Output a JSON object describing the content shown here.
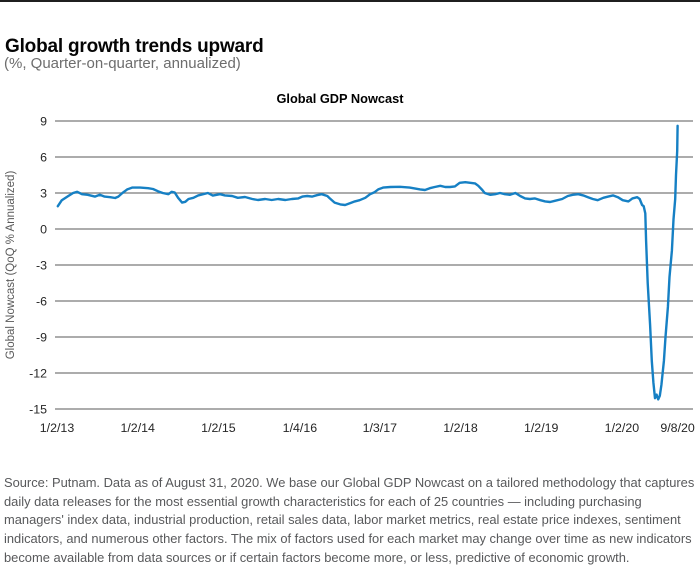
{
  "page": {
    "title": "Global growth trends upward",
    "subtitle": "(%, Quarter-on-quarter, annualized)",
    "source_note": "Source: Putnam. Data as of August 31, 2020. We base our Global GDP Nowcast on a tailored methodology that captures daily data releases for the most essential growth characteristics for each of 25 countries — including purchasing managers' index data, industrial production, retail sales data, labor market metrics, real estate price indexes, sentiment indicators, and numerous other factors. The mix of factors used for each market may change over time as new indicators become available from data sources or if certain factors become more, or less, predictive of economic growth."
  },
  "chart_data": {
    "type": "line",
    "title": "Global GDP Nowcast",
    "xlabel": "",
    "ylabel": "Global Nowcast (QoQ % Annualized)",
    "ylim": [
      -15,
      9
    ],
    "yticks": [
      9,
      6,
      3,
      0,
      -3,
      -6,
      -9,
      -12,
      -15
    ],
    "xlim_years_since_2013": [
      0,
      7.88
    ],
    "grid": "horizontal",
    "legend": "none",
    "line_color": "#1680c4",
    "gridline_color": "#7a7a7a",
    "xticks": [
      {
        "t": 0.0,
        "label": "1/2/13"
      },
      {
        "t": 1.0,
        "label": "1/2/14"
      },
      {
        "t": 2.0,
        "label": "1/2/15"
      },
      {
        "t": 3.01,
        "label": "1/4/16"
      },
      {
        "t": 4.0,
        "label": "1/3/17"
      },
      {
        "t": 5.0,
        "label": "1/2/18"
      },
      {
        "t": 6.0,
        "label": "1/2/19"
      },
      {
        "t": 7.0,
        "label": "1/2/20"
      },
      {
        "t": 7.69,
        "label": "9/8/20"
      }
    ],
    "series": [
      {
        "name": "Global GDP Nowcast",
        "points": [
          [
            0.01,
            1.9
          ],
          [
            0.06,
            2.4
          ],
          [
            0.14,
            2.75
          ],
          [
            0.2,
            3.0
          ],
          [
            0.25,
            3.1
          ],
          [
            0.31,
            2.9
          ],
          [
            0.38,
            2.85
          ],
          [
            0.47,
            2.7
          ],
          [
            0.53,
            2.85
          ],
          [
            0.59,
            2.7
          ],
          [
            0.66,
            2.65
          ],
          [
            0.72,
            2.58
          ],
          [
            0.76,
            2.7
          ],
          [
            0.81,
            3.0
          ],
          [
            0.87,
            3.3
          ],
          [
            0.93,
            3.45
          ],
          [
            1.03,
            3.45
          ],
          [
            1.13,
            3.4
          ],
          [
            1.19,
            3.33
          ],
          [
            1.25,
            3.15
          ],
          [
            1.31,
            3.0
          ],
          [
            1.38,
            2.9
          ],
          [
            1.42,
            3.1
          ],
          [
            1.46,
            3.03
          ],
          [
            1.5,
            2.6
          ],
          [
            1.55,
            2.2
          ],
          [
            1.59,
            2.27
          ],
          [
            1.63,
            2.5
          ],
          [
            1.69,
            2.6
          ],
          [
            1.75,
            2.8
          ],
          [
            1.81,
            2.9
          ],
          [
            1.87,
            3.0
          ],
          [
            1.93,
            2.78
          ],
          [
            2.02,
            2.9
          ],
          [
            2.08,
            2.8
          ],
          [
            2.17,
            2.75
          ],
          [
            2.24,
            2.6
          ],
          [
            2.33,
            2.67
          ],
          [
            2.42,
            2.5
          ],
          [
            2.49,
            2.42
          ],
          [
            2.58,
            2.5
          ],
          [
            2.66,
            2.42
          ],
          [
            2.74,
            2.5
          ],
          [
            2.83,
            2.42
          ],
          [
            2.91,
            2.5
          ],
          [
            2.99,
            2.55
          ],
          [
            3.04,
            2.7
          ],
          [
            3.1,
            2.75
          ],
          [
            3.16,
            2.7
          ],
          [
            3.22,
            2.82
          ],
          [
            3.28,
            2.9
          ],
          [
            3.35,
            2.75
          ],
          [
            3.38,
            2.55
          ],
          [
            3.44,
            2.2
          ],
          [
            3.51,
            2.05
          ],
          [
            3.57,
            2.0
          ],
          [
            3.63,
            2.15
          ],
          [
            3.69,
            2.3
          ],
          [
            3.75,
            2.4
          ],
          [
            3.82,
            2.6
          ],
          [
            3.88,
            2.9
          ],
          [
            3.93,
            3.05
          ],
          [
            3.98,
            3.3
          ],
          [
            4.04,
            3.45
          ],
          [
            4.13,
            3.5
          ],
          [
            4.25,
            3.52
          ],
          [
            4.37,
            3.45
          ],
          [
            4.5,
            3.3
          ],
          [
            4.56,
            3.25
          ],
          [
            4.62,
            3.4
          ],
          [
            4.68,
            3.5
          ],
          [
            4.75,
            3.6
          ],
          [
            4.81,
            3.5
          ],
          [
            4.87,
            3.5
          ],
          [
            4.93,
            3.55
          ],
          [
            4.99,
            3.85
          ],
          [
            5.06,
            3.9
          ],
          [
            5.12,
            3.85
          ],
          [
            5.18,
            3.8
          ],
          [
            5.22,
            3.6
          ],
          [
            5.27,
            3.25
          ],
          [
            5.3,
            3.0
          ],
          [
            5.37,
            2.85
          ],
          [
            5.43,
            2.9
          ],
          [
            5.49,
            3.0
          ],
          [
            5.55,
            2.9
          ],
          [
            5.61,
            2.85
          ],
          [
            5.68,
            3.0
          ],
          [
            5.74,
            2.75
          ],
          [
            5.8,
            2.55
          ],
          [
            5.86,
            2.5
          ],
          [
            5.92,
            2.55
          ],
          [
            5.99,
            2.4
          ],
          [
            6.05,
            2.3
          ],
          [
            6.11,
            2.25
          ],
          [
            6.17,
            2.35
          ],
          [
            6.26,
            2.5
          ],
          [
            6.33,
            2.75
          ],
          [
            6.39,
            2.85
          ],
          [
            6.46,
            2.9
          ],
          [
            6.52,
            2.8
          ],
          [
            6.58,
            2.65
          ],
          [
            6.64,
            2.5
          ],
          [
            6.7,
            2.4
          ],
          [
            6.77,
            2.6
          ],
          [
            6.83,
            2.7
          ],
          [
            6.89,
            2.8
          ],
          [
            6.95,
            2.65
          ],
          [
            7.01,
            2.4
          ],
          [
            7.08,
            2.3
          ],
          [
            7.13,
            2.55
          ],
          [
            7.19,
            2.65
          ],
          [
            7.22,
            2.5
          ],
          [
            7.25,
            2.0
          ],
          [
            7.27,
            1.9
          ],
          [
            7.29,
            1.3
          ],
          [
            7.3,
            -1.0
          ],
          [
            7.32,
            -4.5
          ],
          [
            7.35,
            -8.0
          ],
          [
            7.37,
            -11.0
          ],
          [
            7.39,
            -12.8
          ],
          [
            7.41,
            -14.1
          ],
          [
            7.43,
            -13.8
          ],
          [
            7.45,
            -14.2
          ],
          [
            7.47,
            -13.9
          ],
          [
            7.49,
            -13.0
          ],
          [
            7.52,
            -11.0
          ],
          [
            7.54,
            -9.0
          ],
          [
            7.57,
            -6.5
          ],
          [
            7.59,
            -4.0
          ],
          [
            7.62,
            -1.8
          ],
          [
            7.64,
            0.8
          ],
          [
            7.66,
            2.5
          ],
          [
            7.67,
            4.5
          ],
          [
            7.685,
            6.5
          ],
          [
            7.69,
            8.6
          ]
        ]
      }
    ]
  }
}
